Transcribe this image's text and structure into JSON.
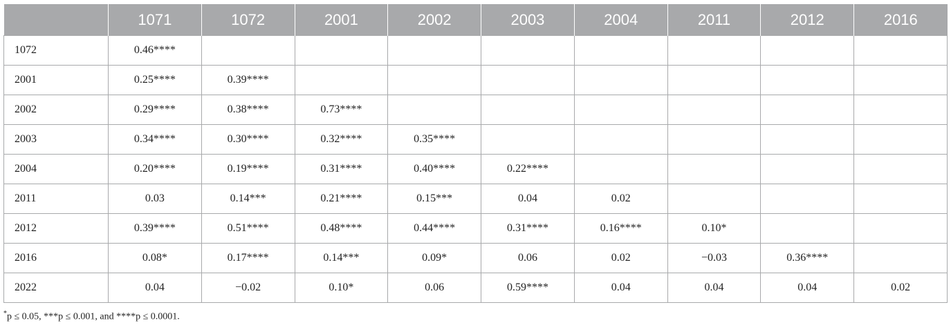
{
  "table": {
    "columns": [
      "",
      "1071",
      "1072",
      "2001",
      "2002",
      "2003",
      "2004",
      "2011",
      "2012",
      "2016"
    ],
    "rows": [
      {
        "label": "1072",
        "cells": [
          "0.46****",
          "",
          "",
          "",
          "",
          "",
          "",
          "",
          ""
        ]
      },
      {
        "label": "2001",
        "cells": [
          "0.25****",
          "0.39****",
          "",
          "",
          "",
          "",
          "",
          "",
          ""
        ]
      },
      {
        "label": "2002",
        "cells": [
          "0.29****",
          "0.38****",
          "0.73****",
          "",
          "",
          "",
          "",
          "",
          ""
        ]
      },
      {
        "label": "2003",
        "cells": [
          "0.34****",
          "0.30****",
          "0.32****",
          "0.35****",
          "",
          "",
          "",
          "",
          ""
        ]
      },
      {
        "label": "2004",
        "cells": [
          "0.20****",
          "0.19****",
          "0.31****",
          "0.40****",
          "0.22****",
          "",
          "",
          "",
          ""
        ]
      },
      {
        "label": "2011",
        "cells": [
          "0.03",
          "0.14***",
          "0.21****",
          "0.15***",
          "0.04",
          "0.02",
          "",
          "",
          ""
        ]
      },
      {
        "label": "2012",
        "cells": [
          "0.39****",
          "0.51****",
          "0.48****",
          "0.44****",
          "0.31****",
          "0.16****",
          "0.10*",
          "",
          ""
        ]
      },
      {
        "label": "2016",
        "cells": [
          "0.08*",
          "0.17****",
          "0.14***",
          "0.09*",
          "0.06",
          "0.02",
          "−0.03",
          "0.36****",
          ""
        ]
      },
      {
        "label": "2022",
        "cells": [
          "0.04",
          "−0.02",
          "0.10*",
          "0.06",
          "0.59****",
          "0.04",
          "0.04",
          "0.04",
          "0.02"
        ]
      }
    ]
  },
  "footnote": {
    "mark": "*",
    "text": "p ≤ 0.05, ***p ≤ 0.001, and ****p ≤ 0.0001."
  },
  "colors": {
    "header_bg": "#a8a9ab",
    "header_text": "#ffffff",
    "grid": "#a8a9ab",
    "text": "#222222"
  }
}
